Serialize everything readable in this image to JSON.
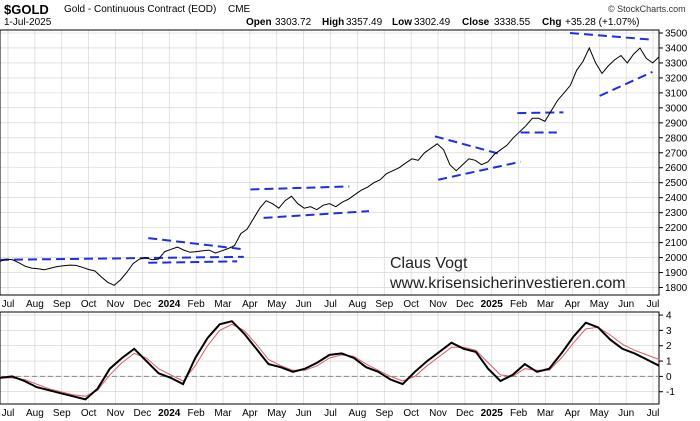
{
  "header": {
    "symbol": "$GOLD",
    "name": "Gold - Continuous Contract (EOD)",
    "exchange": "CME",
    "date": "1-Jul-2025",
    "open_label": "Open",
    "open": "3303.72",
    "high_label": "High",
    "high": "3357.49",
    "low_label": "Low",
    "low": "3302.49",
    "close_label": "Close",
    "close": "3338.55",
    "chg_label": "Chg",
    "chg": "+35.28 (+1.07%)",
    "copyright": "© StockCharts.com"
  },
  "watermark": {
    "line1": "Claus Vogt",
    "line2": "www.krisensicherinvestieren.com"
  },
  "colors": {
    "price": "#000000",
    "trendline": "#1f2fe0",
    "signal": "#e05a6a",
    "zero_line": "#8a8a8a",
    "grid": "#d0d0d0"
  },
  "chart_data": [
    {
      "type": "line",
      "series": [
        {
          "values": [
            1975,
            1990,
            1985,
            1965,
            1942,
            1930,
            1925,
            1918,
            1930,
            1940,
            1945,
            1950,
            1948,
            1935,
            1920,
            1910,
            1870,
            1835,
            1815,
            1850,
            1900,
            1960,
            1990,
            2000,
            1985,
            1990,
            2040,
            2055,
            2070,
            2050,
            2035,
            2040,
            2045,
            2050,
            2030,
            2045,
            2060,
            2080,
            2160,
            2190,
            2260,
            2330,
            2380,
            2360,
            2330,
            2380,
            2410,
            2360,
            2330,
            2340,
            2320,
            2350,
            2360,
            2340,
            2370,
            2390,
            2420,
            2450,
            2470,
            2500,
            2520,
            2560,
            2580,
            2600,
            2630,
            2660,
            2650,
            2700,
            2730,
            2760,
            2720,
            2620,
            2580,
            2620,
            2660,
            2650,
            2620,
            2640,
            2690,
            2720,
            2750,
            2800,
            2840,
            2880,
            2930,
            2930,
            2910,
            2980,
            3050,
            3100,
            3150,
            3250,
            3310,
            3400,
            3300,
            3230,
            3280,
            3320,
            3350,
            3300,
            3360,
            3400,
            3330,
            3300,
            3340
          ]
        }
      ],
      "x_labels": [
        "Jul",
        "Aug",
        "Sep",
        "Oct",
        "Nov",
        "Dec",
        "2024",
        "Feb",
        "Mar",
        "Apr",
        "May",
        "Jun",
        "Jul",
        "Aug",
        "Sep",
        "Oct",
        "Nov",
        "Dec",
        "2025",
        "Feb",
        "Mar",
        "Apr",
        "May",
        "Jun",
        "Jul"
      ],
      "y_ticks": [
        1800,
        1900,
        2000,
        2100,
        2200,
        2300,
        2400,
        2500,
        2600,
        2700,
        2800,
        2900,
        3000,
        3100,
        3200,
        3300,
        3400,
        3500
      ],
      "ylim": [
        1750,
        3520
      ],
      "grid": true
    },
    {
      "type": "line",
      "series": [
        {
          "values": [
            -0.1,
            0.0,
            -0.3,
            -0.7,
            -0.9,
            -1.1,
            -1.3,
            -1.5,
            -0.8,
            0.5,
            1.2,
            1.8,
            1.0,
            0.2,
            -0.1,
            -0.5,
            1.2,
            2.5,
            3.4,
            3.6,
            2.8,
            1.8,
            0.8,
            0.6,
            0.3,
            0.5,
            0.9,
            1.4,
            1.5,
            1.2,
            0.6,
            0.3,
            -0.2,
            -0.5,
            0.3,
            1.0,
            1.6,
            2.2,
            1.8,
            1.6,
            0.5,
            -0.3,
            0.1,
            0.8,
            0.3,
            0.5,
            1.5,
            2.6,
            3.5,
            3.2,
            2.4,
            1.8,
            1.5,
            1.1,
            0.7
          ],
          "name": ""
        },
        {
          "values": [
            -0.1,
            -0.1,
            -0.2,
            -0.5,
            -0.8,
            -1.0,
            -1.2,
            -1.3,
            -0.9,
            0.1,
            0.9,
            1.5,
            1.2,
            0.5,
            0.1,
            -0.3,
            0.7,
            2.0,
            3.0,
            3.4,
            3.0,
            2.1,
            1.1,
            0.7,
            0.4,
            0.4,
            0.7,
            1.2,
            1.4,
            1.3,
            0.8,
            0.4,
            0.0,
            -0.3,
            0.0,
            0.7,
            1.3,
            1.9,
            1.9,
            1.7,
            0.9,
            0.1,
            0.0,
            0.5,
            0.4,
            0.4,
            1.2,
            2.2,
            3.1,
            3.2,
            2.7,
            2.1,
            1.7,
            1.4,
            1.1
          ],
          "name": ""
        }
      ],
      "x_labels": [
        "Jul",
        "Aug",
        "Sep",
        "Oct",
        "Nov",
        "Dec",
        "2024",
        "Feb",
        "Mar",
        "Apr",
        "May",
        "Jun",
        "Jul",
        "Aug",
        "Sep",
        "Oct",
        "Nov",
        "Dec",
        "2025",
        "Feb",
        "Mar",
        "Apr",
        "May",
        "Jun",
        "Jul"
      ],
      "y_ticks": [
        4,
        3,
        2,
        1,
        0,
        -1
      ],
      "ylim": [
        -1.8,
        4.2
      ],
      "grid": true
    }
  ]
}
